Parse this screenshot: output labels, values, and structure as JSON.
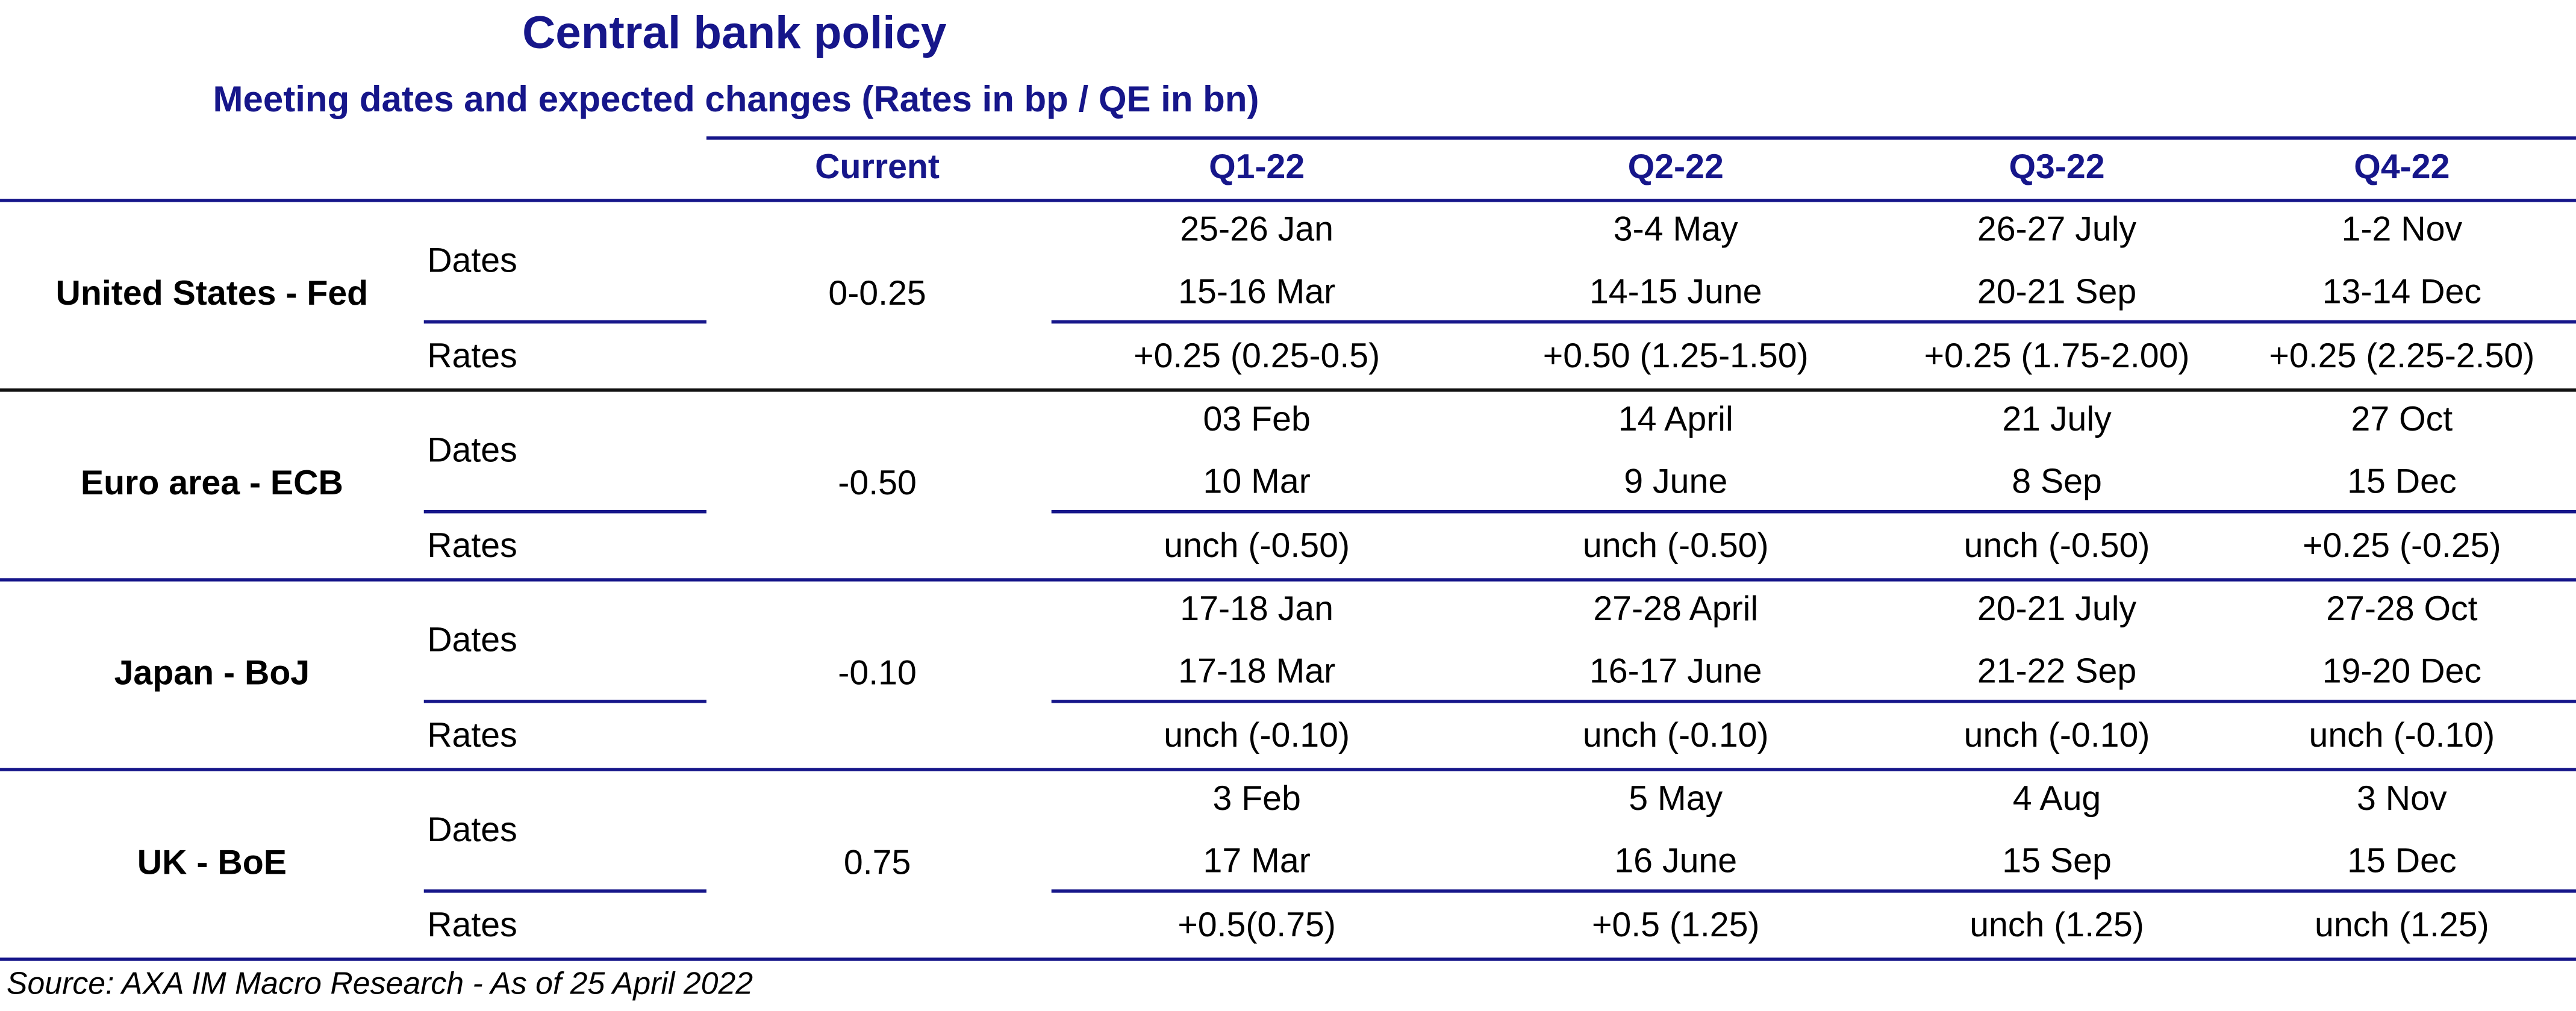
{
  "header": {
    "title": "Central bank policy",
    "subtitle": "Meeting dates and expected changes (Rates in bp / QE in bn)"
  },
  "table": {
    "columns": [
      "Current",
      "Q1-22",
      "Q2-22",
      "Q3-22",
      "Q4-22"
    ],
    "banks": [
      {
        "name": "United States - Fed",
        "current": "0-0.25",
        "dates_label": "Dates",
        "rates_label": "Rates",
        "dates": [
          [
            "25-26 Jan",
            "15-16 Mar"
          ],
          [
            "3-4 May",
            "14-15 June"
          ],
          [
            "26-27 July",
            "20-21 Sep"
          ],
          [
            "1-2 Nov",
            "13-14 Dec"
          ]
        ],
        "rates": [
          "+0.25 (0.25-0.5)",
          "+0.50 (1.25-1.50)",
          "+0.25 (1.75-2.00)",
          "+0.25 (2.25-2.50)"
        ]
      },
      {
        "name": "Euro area - ECB",
        "current": "-0.50",
        "dates_label": "Dates",
        "rates_label": "Rates",
        "dates": [
          [
            "03 Feb",
            "10 Mar"
          ],
          [
            "14 April",
            "9 June"
          ],
          [
            "21 July",
            "8 Sep"
          ],
          [
            "27 Oct",
            "15 Dec"
          ]
        ],
        "rates": [
          "unch (-0.50)",
          "unch (-0.50)",
          "unch (-0.50)",
          "+0.25 (-0.25)"
        ]
      },
      {
        "name": "Japan - BoJ",
        "current": "-0.10",
        "dates_label": "Dates",
        "rates_label": "Rates",
        "dates": [
          [
            "17-18 Jan",
            "17-18 Mar"
          ],
          [
            "27-28 April",
            "16-17 June"
          ],
          [
            "20-21 July",
            "21-22 Sep"
          ],
          [
            "27-28 Oct",
            "19-20 Dec"
          ]
        ],
        "rates": [
          "unch (-0.10)",
          "unch (-0.10)",
          "unch (-0.10)",
          "unch (-0.10)"
        ]
      },
      {
        "name": "UK - BoE",
        "current": "0.75",
        "dates_label": "Dates",
        "rates_label": "Rates",
        "dates": [
          [
            "3 Feb",
            "17 Mar"
          ],
          [
            "5 May",
            "16 June"
          ],
          [
            "4 Aug",
            "15 Sep"
          ],
          [
            "3 Nov",
            "15 Dec"
          ]
        ],
        "rates": [
          "+0.5(0.75)",
          "+0.5 (1.25)",
          "unch (1.25)",
          "unch (1.25)"
        ]
      }
    ]
  },
  "source": "Source: AXA IM Macro Research - As of 25 April 2022"
}
